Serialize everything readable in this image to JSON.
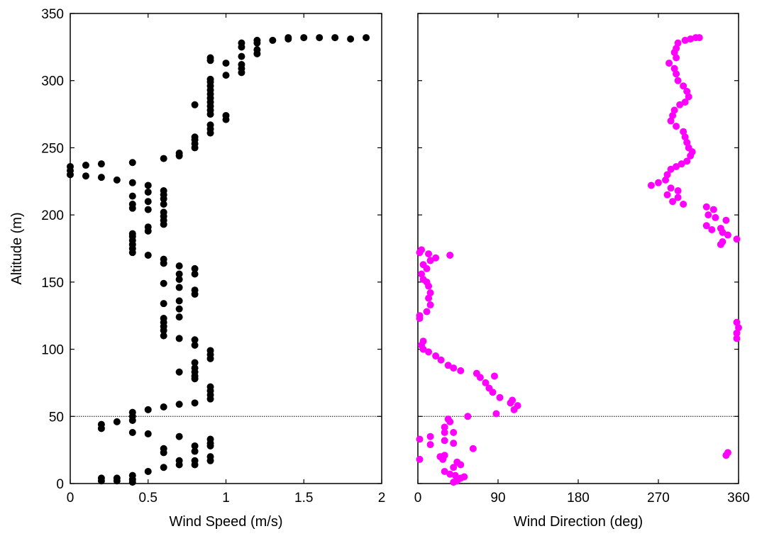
{
  "chart_data": [
    {
      "type": "scatter",
      "xlabel": "Wind Speed (m/s)",
      "ylabel": "Altitude (m)",
      "xlim": [
        0,
        2
      ],
      "ylim": [
        0,
        350
      ],
      "xticks": [
        0,
        0.5,
        1,
        1.5,
        2
      ],
      "xtick_labels": [
        "0",
        "0.5",
        "1",
        "1.5",
        "2"
      ],
      "yticks": [
        0,
        50,
        100,
        150,
        200,
        250,
        300,
        350
      ],
      "ytick_labels": [
        "0",
        "50",
        "100",
        "150",
        "200",
        "250",
        "300",
        "350"
      ],
      "reference_line": {
        "y": 50,
        "style": "dotted",
        "color": "#000000"
      },
      "marker_color": "#000000",
      "series": [
        {
          "points": [
            [
              0.2,
              2
            ],
            [
              0.2,
              4
            ],
            [
              0.3,
              2
            ],
            [
              0.3,
              4
            ],
            [
              0.4,
              1
            ],
            [
              0.4,
              3
            ],
            [
              0.4,
              6
            ],
            [
              0.5,
              9
            ],
            [
              0.6,
              12
            ],
            [
              0.7,
              14
            ],
            [
              0.7,
              17
            ],
            [
              0.8,
              14
            ],
            [
              0.8,
              17
            ],
            [
              0.9,
              17
            ],
            [
              0.9,
              20
            ],
            [
              0.8,
              24
            ],
            [
              0.9,
              28
            ],
            [
              0.8,
              28
            ],
            [
              0.6,
              23
            ],
            [
              0.6,
              26
            ],
            [
              0.7,
              35
            ],
            [
              0.9,
              30
            ],
            [
              0.9,
              33
            ],
            [
              0.5,
              37
            ],
            [
              0.4,
              38
            ],
            [
              0.2,
              41
            ],
            [
              0.2,
              44
            ],
            [
              0.3,
              46
            ],
            [
              0.4,
              47
            ],
            [
              0.4,
              50
            ],
            [
              0.4,
              53
            ],
            [
              0.5,
              55
            ],
            [
              0.6,
              57
            ],
            [
              0.7,
              59
            ],
            [
              0.8,
              60
            ],
            [
              0.9,
              63
            ],
            [
              0.9,
              66
            ],
            [
              0.9,
              69
            ],
            [
              0.9,
              72
            ],
            [
              0.8,
              78
            ],
            [
              0.8,
              80
            ],
            [
              0.8,
              83
            ],
            [
              0.7,
              83
            ],
            [
              0.8,
              86
            ],
            [
              0.8,
              90
            ],
            [
              0.9,
              93
            ],
            [
              0.9,
              96
            ],
            [
              0.9,
              99
            ],
            [
              0.8,
              103
            ],
            [
              0.8,
              107
            ],
            [
              0.7,
              108
            ],
            [
              0.6,
              110
            ],
            [
              0.6,
              114
            ],
            [
              0.6,
              117
            ],
            [
              0.6,
              120
            ],
            [
              0.6,
              123
            ],
            [
              0.7,
              124
            ],
            [
              0.7,
              130
            ],
            [
              0.7,
              136
            ],
            [
              0.6,
              134
            ],
            [
              0.8,
              141
            ],
            [
              0.8,
              144
            ],
            [
              0.7,
              146
            ],
            [
              0.6,
              149
            ],
            [
              0.7,
              152
            ],
            [
              0.7,
              156
            ],
            [
              0.8,
              156
            ],
            [
              0.8,
              160
            ],
            [
              0.7,
              162
            ],
            [
              0.6,
              164
            ],
            [
              0.6,
              167
            ],
            [
              0.5,
              170
            ],
            [
              0.4,
              172
            ],
            [
              0.4,
              175
            ],
            [
              0.4,
              178
            ],
            [
              0.4,
              181
            ],
            [
              0.4,
              184
            ],
            [
              0.4,
              186
            ],
            [
              0.5,
              188
            ],
            [
              0.5,
              191
            ],
            [
              0.6,
              193
            ],
            [
              0.6,
              196
            ],
            [
              0.6,
              199
            ],
            [
              0.6,
              202
            ],
            [
              0.5,
              204
            ],
            [
              0.4,
              205
            ],
            [
              0.4,
              208
            ],
            [
              0.5,
              210
            ],
            [
              0.6,
              208
            ],
            [
              0.6,
              212
            ],
            [
              0.6,
              215
            ],
            [
              0.6,
              218
            ],
            [
              0.5,
              217
            ],
            [
              0.4,
              214
            ],
            [
              0.5,
              222
            ],
            [
              0.4,
              224
            ],
            [
              0.3,
              226
            ],
            [
              0.2,
              228
            ],
            [
              0.1,
              229
            ],
            [
              0,
              230
            ],
            [
              0,
              233
            ],
            [
              0,
              236
            ],
            [
              0.1,
              237
            ],
            [
              0.2,
              238
            ],
            [
              0.4,
              239
            ],
            [
              0.6,
              242
            ],
            [
              0.7,
              244
            ],
            [
              0.7,
              246
            ],
            [
              0.8,
              250
            ],
            [
              0.8,
              253
            ],
            [
              0.8,
              256
            ],
            [
              0.8,
              258
            ],
            [
              0.9,
              261
            ],
            [
              0.9,
              264
            ],
            [
              0.9,
              267
            ],
            [
              1,
              271
            ],
            [
              1,
              274
            ],
            [
              0.9,
              275
            ],
            [
              0.9,
              278
            ],
            [
              0.8,
              282
            ],
            [
              0.9,
              281
            ],
            [
              0.9,
              284
            ],
            [
              0.9,
              287
            ],
            [
              0.9,
              290
            ],
            [
              0.9,
              293
            ],
            [
              0.9,
              296
            ],
            [
              0.9,
              299
            ],
            [
              0.9,
              301
            ],
            [
              1,
              304
            ],
            [
              1.1,
              306
            ],
            [
              1.1,
              309
            ],
            [
              1.1,
              312
            ],
            [
              1,
              313
            ],
            [
              0.9,
              315
            ],
            [
              0.9,
              317
            ],
            [
              1.1,
              318
            ],
            [
              1.2,
              320
            ],
            [
              1.2,
              323
            ],
            [
              1.1,
              325
            ],
            [
              1.1,
              328
            ],
            [
              1.2,
              328
            ],
            [
              1.2,
              330
            ],
            [
              1.3,
              330
            ],
            [
              1.4,
              331
            ],
            [
              1.4,
              332
            ],
            [
              1.5,
              332
            ],
            [
              1.6,
              332
            ],
            [
              1.7,
              332
            ],
            [
              1.8,
              331
            ],
            [
              1.9,
              332
            ]
          ]
        }
      ]
    },
    {
      "type": "scatter",
      "xlabel": "Wind Direction (deg)",
      "ylabel": "",
      "xlim": [
        0,
        360
      ],
      "ylim": [
        0,
        350
      ],
      "xticks": [
        0,
        90,
        180,
        270,
        360
      ],
      "xtick_labels": [
        "0",
        "90",
        "180",
        "270",
        "360"
      ],
      "yticks": [
        0,
        50,
        100,
        150,
        200,
        250,
        300,
        350
      ],
      "reference_line": {
        "y": 50,
        "style": "dotted",
        "color": "#000000"
      },
      "marker_color": "#ff00ff",
      "series": [
        {
          "points": [
            [
              40,
              1
            ],
            [
              44,
              2
            ],
            [
              48,
              4
            ],
            [
              52,
              5
            ],
            [
              42,
              6
            ],
            [
              36,
              7
            ],
            [
              30,
              9
            ],
            [
              40,
              12
            ],
            [
              48,
              14
            ],
            [
              44,
              16
            ],
            [
              28,
              18
            ],
            [
              2,
              18
            ],
            [
              25,
              20
            ],
            [
              30,
              21
            ],
            [
              346,
              21
            ],
            [
              348,
              23
            ],
            [
              62,
              26
            ],
            [
              14,
              29
            ],
            [
              40,
              30
            ],
            [
              30,
              32
            ],
            [
              2,
              33
            ],
            [
              14,
              35
            ],
            [
              30,
              38
            ],
            [
              40,
              38
            ],
            [
              30,
              42
            ],
            [
              36,
              46
            ],
            [
              34,
              48
            ],
            [
              56,
              50
            ],
            [
              88,
              52
            ],
            [
              108,
              55
            ],
            [
              112,
              58
            ],
            [
              104,
              60
            ],
            [
              106,
              62
            ],
            [
              92,
              64
            ],
            [
              84,
              68
            ],
            [
              80,
              71
            ],
            [
              76,
              75
            ],
            [
              70,
              79
            ],
            [
              86,
              80
            ],
            [
              66,
              82
            ],
            [
              48,
              84
            ],
            [
              40,
              86
            ],
            [
              34,
              88
            ],
            [
              26,
              92
            ],
            [
              20,
              95
            ],
            [
              12,
              98
            ],
            [
              6,
              100
            ],
            [
              4,
              103
            ],
            [
              6,
              106
            ],
            [
              358,
              108
            ],
            [
              358,
              112
            ],
            [
              360,
              116
            ],
            [
              358,
              120
            ],
            [
              2,
              123
            ],
            [
              2,
              125
            ],
            [
              10,
              128
            ],
            [
              14,
              133
            ],
            [
              12,
              138
            ],
            [
              14,
              142
            ],
            [
              12,
              147
            ],
            [
              10,
              150
            ],
            [
              6,
              152
            ],
            [
              4,
              156
            ],
            [
              10,
              160
            ],
            [
              6,
              163
            ],
            [
              14,
              166
            ],
            [
              20,
              168
            ],
            [
              36,
              170
            ],
            [
              12,
              171
            ],
            [
              2,
              172
            ],
            [
              4,
              174
            ],
            [
              340,
              178
            ],
            [
              342,
              180
            ],
            [
              358,
              182
            ],
            [
              348,
              185
            ],
            [
              342,
              187
            ],
            [
              330,
              189
            ],
            [
              340,
              190
            ],
            [
              324,
              192
            ],
            [
              346,
              196
            ],
            [
              334,
              198
            ],
            [
              326,
              200
            ],
            [
              332,
              204
            ],
            [
              324,
              206
            ],
            [
              298,
              208
            ],
            [
              286,
              210
            ],
            [
              292,
              213
            ],
            [
              280,
              215
            ],
            [
              292,
              218
            ],
            [
              284,
              220
            ],
            [
              262,
              222
            ],
            [
              270,
              224
            ],
            [
              278,
              226
            ],
            [
              280,
              230
            ],
            [
              284,
              234
            ],
            [
              290,
              236
            ],
            [
              296,
              238
            ],
            [
              302,
              240
            ],
            [
              306,
              244
            ],
            [
              308,
              247
            ],
            [
              304,
              250
            ],
            [
              302,
              254
            ],
            [
              300,
              258
            ],
            [
              298,
              262
            ],
            [
              290,
              266
            ],
            [
              284,
              270
            ],
            [
              286,
              274
            ],
            [
              288,
              278
            ],
            [
              294,
              282
            ],
            [
              300,
              284
            ],
            [
              304,
              288
            ],
            [
              302,
              292
            ],
            [
              298,
              296
            ],
            [
              292,
              300
            ],
            [
              290,
              305
            ],
            [
              288,
              309
            ],
            [
              282,
              313
            ],
            [
              290,
              317
            ],
            [
              288,
              321
            ],
            [
              290,
              324
            ],
            [
              292,
              328
            ],
            [
              300,
              330
            ],
            [
              306,
              331
            ],
            [
              312,
              332
            ],
            [
              316,
              332
            ]
          ]
        }
      ]
    }
  ]
}
